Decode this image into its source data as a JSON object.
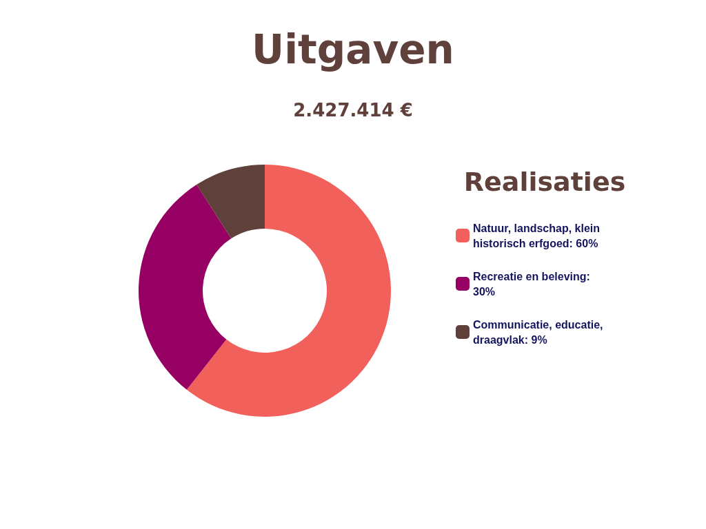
{
  "chart_data": {
    "type": "donut",
    "title": "Uitgaven",
    "subtitle": "2.427.414 €",
    "legend_title": "Realisaties",
    "categories": [
      "Natuur, landschap, klein historisch erfgoed: 60%",
      "Recreatie en beleving: 30%",
      "Communicatie, educatie, draagvlak: 9%"
    ],
    "values": [
      60,
      30,
      9
    ],
    "colors": [
      "#f2605b",
      "#960062",
      "#5f403a"
    ],
    "legend": "right"
  }
}
